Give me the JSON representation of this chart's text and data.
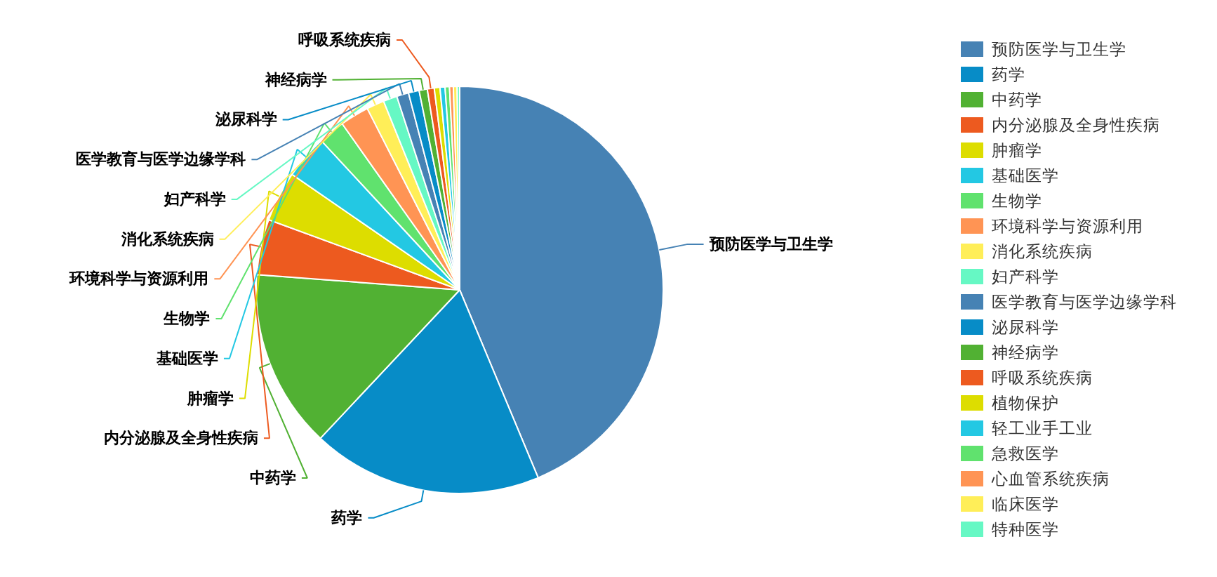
{
  "chart_data": {
    "type": "pie",
    "legend": "right",
    "categories": [
      "预防医学与卫生学",
      "药学",
      "中药学",
      "内分泌腺及全身性疾病",
      "肿瘤学",
      "基础医学",
      "生物学",
      "环境科学与资源利用",
      "消化系统疾病",
      "妇产科学",
      "医学教育与医学边缘学科",
      "泌尿科学",
      "神经病学",
      "呼吸系统疾病",
      "植物保护",
      "轻工业手工业",
      "急救医学",
      "心血管系统疾病",
      "临床医学",
      "特种医学"
    ],
    "values": [
      43.7,
      18.3,
      14.2,
      4.4,
      4.0,
      3.5,
      2.1,
      2.3,
      1.4,
      1.1,
      0.95,
      0.85,
      0.65,
      0.55,
      0.45,
      0.4,
      0.35,
      0.3,
      0.3,
      0.2
    ],
    "colors": [
      "#4682b4",
      "#078cc7",
      "#51b133",
      "#ed5a1f",
      "#dddd00",
      "#23c8e3",
      "#60e26e",
      "#ff9454",
      "#ffee58",
      "#66f8c4",
      "#4682b4",
      "#078cc7",
      "#51b133",
      "#ed5a1f",
      "#dddd00",
      "#23c8e3",
      "#60e26e",
      "#ff9454",
      "#ffee58",
      "#66f8c4"
    ]
  }
}
